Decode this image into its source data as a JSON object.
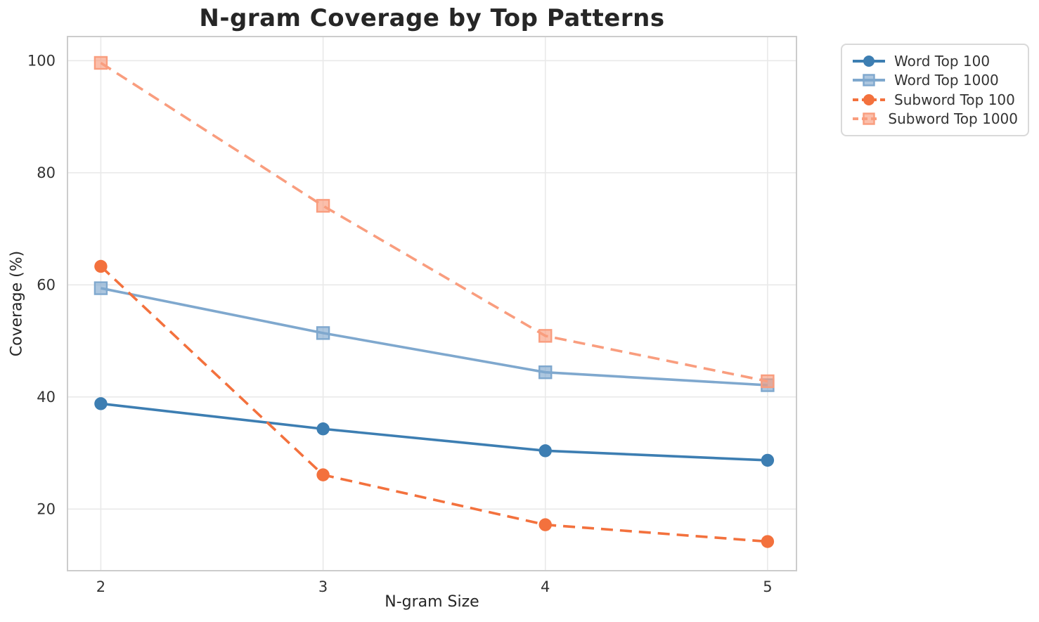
{
  "chart_data": {
    "type": "line",
    "title": "N-gram Coverage by Top Patterns",
    "xlabel": "N-gram Size",
    "ylabel": "Coverage (%)",
    "x": [
      2,
      3,
      4,
      5
    ],
    "x_ticks": [
      "2",
      "3",
      "4",
      "5"
    ],
    "y_ticks": [
      "20",
      "40",
      "60",
      "80",
      "100"
    ],
    "y_tick_values": [
      20,
      40,
      60,
      80,
      100
    ],
    "xlim": [
      1.85,
      5.13
    ],
    "ylim": [
      9.0,
      104.3
    ],
    "grid": true,
    "legend_position": "outside-upper-right",
    "series": [
      {
        "name": "Word Top 100",
        "values": [
          38.8,
          34.3,
          30.4,
          28.7
        ],
        "color": "#3d7eb2",
        "marker": "circle",
        "line_style": "solid"
      },
      {
        "name": "Word Top 1000",
        "values": [
          59.4,
          51.4,
          44.4,
          42.1
        ],
        "color": "#7fa8ce",
        "marker": "square",
        "line_style": "solid"
      },
      {
        "name": "Subword Top 100",
        "values": [
          63.3,
          26.1,
          17.2,
          14.2
        ],
        "color": "#f3713d",
        "marker": "circle",
        "line_style": "dashed"
      },
      {
        "name": "Subword Top 1000",
        "values": [
          99.6,
          74.1,
          50.9,
          42.8
        ],
        "color": "#f99d7e",
        "marker": "square",
        "line_style": "dashed"
      }
    ]
  },
  "style": {
    "grid_color": "#e9e9e9",
    "spine_color": "#cccccc",
    "tick_label_color": "#333333",
    "text_color": "#262626",
    "background": "#ffffff"
  }
}
